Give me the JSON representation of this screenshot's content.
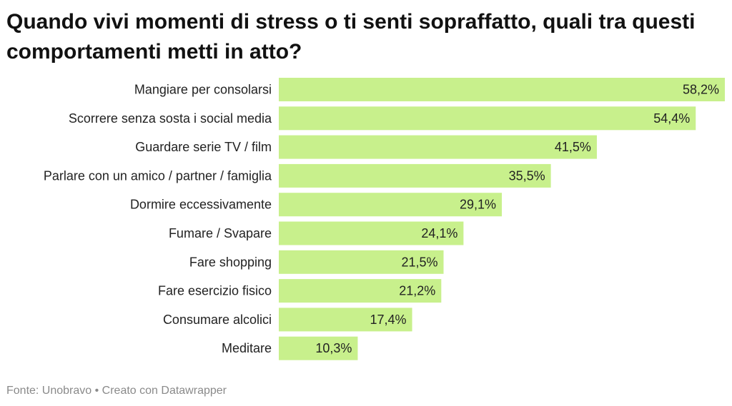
{
  "chart_data": {
    "type": "bar",
    "orientation": "horizontal",
    "title": "Quando vivi momenti di stress o ti senti sopraffatto, quali tra questi comportamenti metti in atto?",
    "categories": [
      "Mangiare per consolarsi",
      "Scorrere senza sosta i social media",
      "Guardare serie TV / film",
      "Parlare con un amico / partner / famiglia",
      "Dormire eccessivamente",
      "Fumare / Svapare",
      "Fare shopping",
      "Fare esercizio fisico",
      "Consumare alcolici",
      "Meditare"
    ],
    "values": [
      58.2,
      54.4,
      41.5,
      35.5,
      29.1,
      24.1,
      21.5,
      21.2,
      17.4,
      10.3
    ],
    "value_labels": [
      "58,2%",
      "54,4%",
      "41,5%",
      "35,5%",
      "29,1%",
      "24,1%",
      "21,5%",
      "21,2%",
      "17,4%",
      "10,3%"
    ],
    "unit": "%",
    "xlim": [
      0,
      58.2
    ],
    "grid": false,
    "legend": "none",
    "bar_color": "#c8f08c"
  },
  "footer": {
    "text": "Fonte: Unobravo • Creato con Datawrapper"
  }
}
